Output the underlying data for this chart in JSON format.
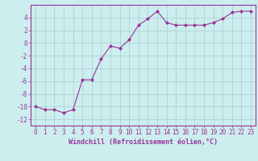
{
  "x": [
    0,
    1,
    2,
    3,
    4,
    5,
    6,
    7,
    8,
    9,
    10,
    11,
    12,
    13,
    14,
    15,
    16,
    17,
    18,
    19,
    20,
    21,
    22,
    23
  ],
  "y": [
    -10,
    -10.5,
    -10.5,
    -11,
    -10.5,
    -5.8,
    -5.8,
    -2.5,
    -0.5,
    -0.8,
    0.5,
    2.8,
    3.8,
    5.0,
    3.2,
    2.8,
    2.8,
    2.8,
    2.8,
    3.2,
    3.8,
    4.8,
    5.0,
    5.0
  ],
  "xlabel": "Windchill (Refroidissement éolien,°C)",
  "xlim": [
    -0.5,
    23.5
  ],
  "ylim": [
    -13,
    6
  ],
  "yticks": [
    -12,
    -10,
    -8,
    -6,
    -4,
    -2,
    0,
    2,
    4
  ],
  "xticks": [
    0,
    1,
    2,
    3,
    4,
    5,
    6,
    7,
    8,
    9,
    10,
    11,
    12,
    13,
    14,
    15,
    16,
    17,
    18,
    19,
    20,
    21,
    22,
    23
  ],
  "line_color": "#993399",
  "marker": "D",
  "marker_size": 2,
  "bg_color": "#cceeee",
  "grid_color": "#aacccc",
  "axis_color": "#993399",
  "label_color": "#993399",
  "tick_fontsize": 5.5,
  "xlabel_fontsize": 6.0
}
